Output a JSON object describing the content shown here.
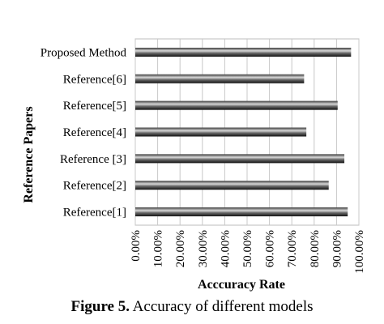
{
  "chart_data": {
    "type": "bar",
    "orientation": "horizontal",
    "categories": [
      "Proposed Method",
      "Reference[6]",
      "Reference[5]",
      "Reference[4]",
      "Reference [3]",
      "Reference[2]",
      "Reference[1]"
    ],
    "values": [
      96.5,
      75.5,
      90.5,
      76.5,
      93.5,
      86.5,
      95.0
    ],
    "ylabel": "Reference Papers",
    "xlabel": "Acccuracy Rate",
    "xlim": [
      0,
      100
    ],
    "xticks": [
      "0.00%",
      "10.00%",
      "20.00%",
      "30.00%",
      "40.00%",
      "50.00%",
      "60.00%",
      "70.00%",
      "80.00%",
      "90.00%",
      "100.00%"
    ],
    "grid": true,
    "legend": "none"
  },
  "caption": {
    "label": "Figure 5.",
    "text": " Accuracy of different models"
  }
}
